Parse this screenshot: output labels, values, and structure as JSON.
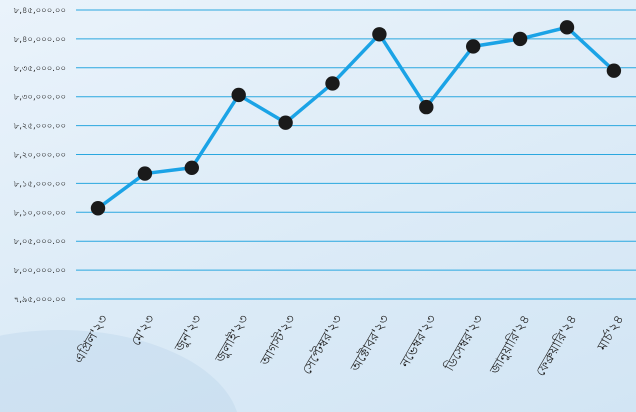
{
  "chart_data": {
    "type": "line",
    "title": "",
    "xlabel": "",
    "ylabel": "",
    "categories": [
      "এপ্রিল'২৩",
      "মে'২৩",
      "জুন'২৩",
      "জুলাই'২৩",
      "আগস্ট'২৩",
      "সেপ্টেম্বর'২৩",
      "অক্টোবর'২৩",
      "নভেম্বর'২৩",
      "ডিসেম্বর'২৩",
      "জানুয়ারি'২৪",
      "ফেব্রুয়ারি'২৪",
      "মার্চ'২৪"
    ],
    "values": [
      810700,
      816700,
      817700,
      830300,
      825500,
      832300,
      840800,
      828200,
      838700,
      840000,
      842000,
      834500
    ],
    "ylim": [
      795000,
      845000
    ],
    "y_ticks": [
      795000,
      800000,
      805000,
      810000,
      815000,
      820000,
      825000,
      830000,
      835000,
      840000,
      845000
    ],
    "y_tick_labels": [
      "৭,৯৫,০০০.০০",
      "৮,০০,০০০.০০",
      "৮,০৫,০০০.০০",
      "৮,১০,০০০.০০",
      "৮,১৫,০০০.০০",
      "৮,২০,০০০.০০",
      "৮,২৫,০০০.০০",
      "৮,৩০,০০০.০০",
      "৮,৩৫,০০০.০০",
      "৮,৪০,০০০.০০",
      "৮,৪৫,০০০.০০"
    ],
    "line_color": "#1ba3e6",
    "marker_color": "#1a1a1a",
    "grid": true,
    "legend": "none"
  }
}
